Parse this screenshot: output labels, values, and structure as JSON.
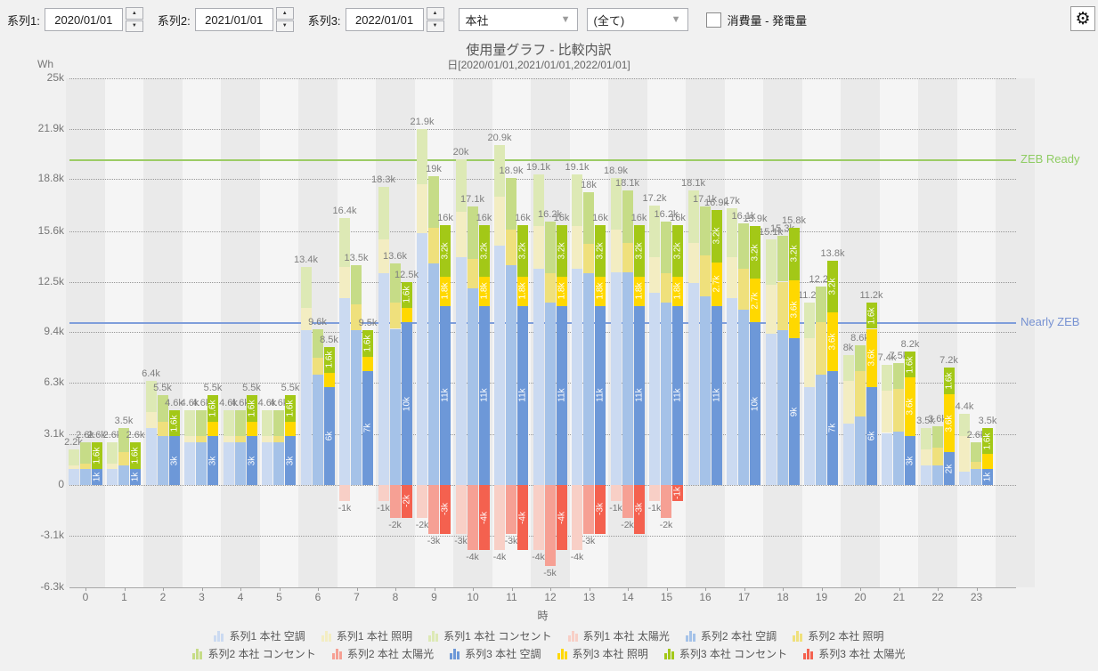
{
  "toolbar": {
    "series_fields": [
      {
        "label": "系列1:",
        "value": "2020/01/01"
      },
      {
        "label": "系列2:",
        "value": "2021/01/01"
      },
      {
        "label": "系列3:",
        "value": "2022/01/01"
      }
    ],
    "building_select": {
      "value": "本社"
    },
    "scope_select": {
      "value": "(全て)"
    },
    "diff_checkbox": {
      "label": "消費量 - 発電量",
      "checked": false
    }
  },
  "chart": {
    "title": "使用量グラフ - 比較内訳",
    "subtitle": "日[2020/01/01,2021/01/01,2022/01/01]",
    "y_unit": "Wh",
    "x_label": "時"
  },
  "chart_data": {
    "type": "bar",
    "stacked": true,
    "title": "使用量グラフ - 比較内訳",
    "xlabel": "時",
    "ylabel": "Wh",
    "x_hours": [
      0,
      1,
      2,
      3,
      4,
      5,
      6,
      7,
      8,
      9,
      10,
      11,
      12,
      13,
      14,
      15,
      16,
      17,
      18,
      19,
      20,
      21,
      22,
      23
    ],
    "yticks_k": [
      25,
      21.9,
      18.8,
      15.6,
      12.5,
      9.4,
      6.3,
      3.1,
      0,
      -3.1,
      -6.3
    ],
    "ylim_k": [
      -6.3,
      25
    ],
    "components": [
      "空調",
      "照明",
      "コンセント",
      "太陽光"
    ],
    "ref_lines": [
      {
        "label": "ZEB Ready",
        "value_k": 20,
        "line_color": "#9ccc65",
        "text_color": "#8fcc63"
      },
      {
        "label": "Nearly ZEB",
        "value_k": 10,
        "line_color": "#7f9edb",
        "text_color": "#7792d2"
      }
    ],
    "series": [
      {
        "name": "系列1",
        "site": "本社",
        "date": "2020/01/01",
        "colors": {
          "空調": "#cbdaf1",
          "照明": "#f3edc2",
          "コンセント": "#dde9b5",
          "太陽光": "#f8cfc6"
        },
        "空調": [
          1.0,
          1.0,
          3.5,
          2.6,
          2.6,
          2.6,
          9.5,
          11.5,
          13.0,
          15.5,
          14.0,
          14.7,
          13.3,
          13.3,
          13.1,
          11.8,
          12.4,
          11.5,
          9.3,
          6.0,
          3.8,
          3.2,
          1.2,
          0.8
        ],
        "照明": [
          0.2,
          0.3,
          1.0,
          0.4,
          0.4,
          0.4,
          1.4,
          1.9,
          2.1,
          3.0,
          2.8,
          3.0,
          2.6,
          2.6,
          2.6,
          2.2,
          2.5,
          2.5,
          3.0,
          3.0,
          2.6,
          2.6,
          1.0,
          2.2
        ],
        "コンセント": [
          1.0,
          1.3,
          1.9,
          1.6,
          1.6,
          1.6,
          2.5,
          3.0,
          3.2,
          3.4,
          3.2,
          3.2,
          3.2,
          3.2,
          3.2,
          3.2,
          3.2,
          3.0,
          2.8,
          2.2,
          1.6,
          1.6,
          1.3,
          1.4
        ],
        "太陽光": [
          0,
          0,
          0,
          0,
          0,
          0,
          0,
          -1,
          -1,
          -2,
          -3,
          -4,
          -4,
          -4,
          -1,
          -1,
          0,
          0,
          0,
          0,
          0,
          0,
          0,
          0
        ],
        "totals": [
          2.2,
          2.6,
          6.4,
          4.6,
          4.6,
          4.6,
          13.4,
          16.4,
          18.3,
          21.9,
          20,
          20.9,
          19.1,
          19.1,
          18.9,
          17.2,
          18.1,
          17,
          15.1,
          11.2,
          8,
          7.4,
          3.5,
          4.4
        ]
      },
      {
        "name": "系列2",
        "site": "本社",
        "date": "2021/01/01",
        "colors": {
          "空調": "#a5c2e8",
          "照明": "#efe07c",
          "コンセント": "#c6dc87",
          "太陽光": "#f6a094"
        },
        "空調": [
          1.0,
          1.2,
          3.0,
          2.6,
          2.6,
          2.6,
          6.8,
          9.5,
          9.6,
          13.6,
          12.1,
          13.5,
          11.2,
          13.0,
          13.1,
          11.2,
          11.6,
          10.8,
          9.5,
          6.8,
          4.2,
          3.3,
          1.2,
          1.0
        ],
        "照明": [
          0.3,
          0.8,
          0.9,
          0.4,
          0.4,
          0.4,
          1.0,
          1.6,
          1.6,
          2.2,
          1.8,
          2.2,
          1.8,
          1.8,
          1.8,
          1.8,
          2.5,
          2.5,
          3.0,
          3.2,
          2.8,
          2.6,
          1.1,
          0.4
        ],
        "コンセント": [
          1.3,
          1.5,
          1.6,
          1.6,
          1.6,
          1.6,
          1.8,
          2.4,
          2.4,
          3.2,
          3.2,
          3.2,
          3.2,
          3.2,
          3.2,
          3.2,
          3.0,
          2.8,
          2.8,
          2.2,
          1.6,
          1.6,
          1.3,
          1.2
        ],
        "太陽光": [
          0,
          0,
          0,
          0,
          0,
          0,
          0,
          0,
          -2,
          -3,
          -4,
          -3,
          -5,
          -3,
          -2,
          -2,
          0,
          0,
          0,
          0,
          0,
          0,
          0,
          0
        ],
        "totals": [
          2.6,
          3.5,
          5.5,
          4.6,
          4.6,
          4.6,
          9.6,
          13.5,
          13.6,
          19,
          17.1,
          18.9,
          16.2,
          18,
          18.1,
          16.2,
          17.1,
          16.1,
          15.3,
          12.2,
          8.6,
          7.5,
          3.6,
          2.6
        ]
      },
      {
        "name": "系列3",
        "site": "本社",
        "date": "2022/01/01",
        "colors": {
          "空調": "#6d98d8",
          "照明": "#ffd800",
          "コンセント": "#a3c817",
          "太陽光": "#f4614f"
        },
        "空調": [
          1,
          1,
          3,
          3,
          3,
          3,
          6,
          7,
          10,
          11,
          11,
          11,
          11,
          11,
          11,
          11,
          11,
          10,
          9,
          7,
          6,
          3,
          2,
          1
        ],
        "照明": [
          0,
          0,
          0,
          0.9,
          0.9,
          0.9,
          0.9,
          0.9,
          0.9,
          1.8,
          1.8,
          1.8,
          1.8,
          1.8,
          1.8,
          1.8,
          2.7,
          2.7,
          3.6,
          3.6,
          3.6,
          3.6,
          3.6,
          0.9
        ],
        "コンセント": [
          1.6,
          1.6,
          1.6,
          1.6,
          1.6,
          1.6,
          1.6,
          1.6,
          1.6,
          3.2,
          3.2,
          3.2,
          3.2,
          3.2,
          3.2,
          3.2,
          3.2,
          3.2,
          3.2,
          3.2,
          1.6,
          1.6,
          1.6,
          1.6
        ],
        "太陽光": [
          0,
          0,
          0,
          0,
          0,
          0,
          0,
          0,
          -2,
          -3,
          -4,
          -4,
          -4,
          -3,
          -3,
          -1,
          0,
          0,
          0,
          0,
          0,
          0,
          0,
          0
        ],
        "totals": [
          2.6,
          2.6,
          4.6,
          5.5,
          5.5,
          5.5,
          8.5,
          9.5,
          12.5,
          16,
          16,
          16,
          16,
          16,
          16,
          16,
          16.9,
          15.9,
          15.8,
          13.8,
          11.2,
          8.2,
          7.2,
          3.5
        ]
      }
    ]
  },
  "legend": {
    "rows": [
      [
        {
          "label": "系列1 本社 空調",
          "color": "#cbdaf1"
        },
        {
          "label": "系列1 本社 照明",
          "color": "#f3edc2"
        },
        {
          "label": "系列1 本社 コンセント",
          "color": "#dde9b5"
        },
        {
          "label": "系列1 本社 太陽光",
          "color": "#f8cfc6"
        },
        {
          "label": "系列2 本社 空調",
          "color": "#a5c2e8"
        },
        {
          "label": "系列2 本社 照明",
          "color": "#efe07c"
        }
      ],
      [
        {
          "label": "系列2 本社 コンセント",
          "color": "#c6dc87"
        },
        {
          "label": "系列2 本社 太陽光",
          "color": "#f6a094"
        },
        {
          "label": "系列3 本社 空調",
          "color": "#6d98d8"
        },
        {
          "label": "系列3 本社 照明",
          "color": "#ffd800"
        },
        {
          "label": "系列3 本社 コンセント",
          "color": "#a3c817"
        },
        {
          "label": "系列3 本社 太陽光",
          "color": "#f4614f"
        }
      ]
    ]
  }
}
